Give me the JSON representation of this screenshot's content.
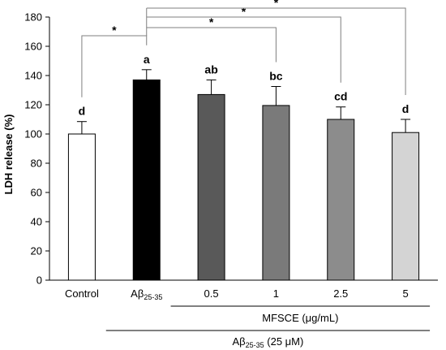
{
  "chart_data": {
    "type": "bar",
    "ylabel": "LDH release (%)",
    "ylim": [
      0,
      180
    ],
    "yticks": [
      0,
      20,
      40,
      60,
      80,
      100,
      120,
      140,
      160,
      180
    ],
    "grid": false,
    "categories": [
      {
        "main": "Control",
        "sub": ""
      },
      {
        "main": "Aβ",
        "sub": "25-35"
      },
      {
        "main": "0.5",
        "sub": ""
      },
      {
        "main": "1",
        "sub": ""
      },
      {
        "main": "2.5",
        "sub": ""
      },
      {
        "main": "5",
        "sub": ""
      }
    ],
    "values": [
      100,
      137,
      127,
      119.5,
      110,
      101
    ],
    "errors": [
      8.5,
      7,
      10,
      13,
      8.5,
      9
    ],
    "significance_letters": [
      "d",
      "a",
      "ab",
      "bc",
      "cd",
      "d"
    ],
    "bar_colors": [
      "#ffffff",
      "#000000",
      "#595959",
      "#7a7a7a",
      "#8c8c8c",
      "#d4d4d4"
    ],
    "brackets": [
      {
        "from": 0,
        "to": 1,
        "label": "*"
      },
      {
        "from": 1,
        "to": 3,
        "label": "*"
      },
      {
        "from": 1,
        "to": 4,
        "label": "*"
      },
      {
        "from": 1,
        "to": 5,
        "label": "*"
      }
    ],
    "group_labels": [
      {
        "main": "MFSCE (μg/mL)",
        "sub": "",
        "suffix": ""
      },
      {
        "main": "Aβ",
        "sub": "25-35",
        "suffix": " (25 μM)"
      }
    ]
  }
}
